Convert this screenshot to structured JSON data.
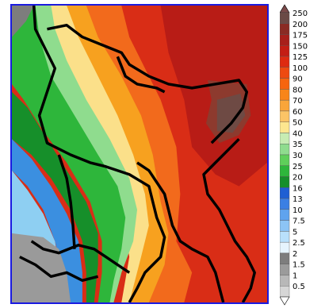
{
  "map": {
    "background_colors": [
      "#e23b1e",
      "#f26a1c",
      "#f7a11f",
      "#f9d97b",
      "#69d36a",
      "#2fae3c",
      "#8ecff2",
      "#3b8fe0",
      "#9a9a9a",
      "#6d2a2a",
      "#b01a1a"
    ],
    "boundary_color": "#000000",
    "frame_color": "#1a1ae0"
  },
  "legend": {
    "max_arrow_color": "#7a4a4a",
    "min_arrow_color": "#ffffff",
    "bins": [
      {
        "label": "250",
        "color": "#6b4a46"
      },
      {
        "label": "200",
        "color": "#8a2b24"
      },
      {
        "label": "175",
        "color": "#a8201b"
      },
      {
        "label": "150",
        "color": "#c41e14"
      },
      {
        "label": "125",
        "color": "#de2a10"
      },
      {
        "label": "100",
        "color": "#ee4a10"
      },
      {
        "label": "90",
        "color": "#f6650f"
      },
      {
        "label": "80",
        "color": "#f8851a"
      },
      {
        "label": "70",
        "color": "#f9a53a"
      },
      {
        "label": "60",
        "color": "#fbc466"
      },
      {
        "label": "50",
        "color": "#fde68f"
      },
      {
        "label": "40",
        "color": "#c7ecb3"
      },
      {
        "label": "35",
        "color": "#8fdc8e"
      },
      {
        "label": "30",
        "color": "#5fcf5a"
      },
      {
        "label": "25",
        "color": "#2eb63b"
      },
      {
        "label": "20",
        "color": "#168f2a"
      },
      {
        "label": "16",
        "color": "#1f5fd3"
      },
      {
        "label": "13",
        "color": "#3b7fe3"
      },
      {
        "label": "10",
        "color": "#5fa3ee"
      },
      {
        "label": "7.5",
        "color": "#8cc4f5"
      },
      {
        "label": "5",
        "color": "#b9e0fb"
      },
      {
        "label": "2.5",
        "color": "#e6f4fd"
      },
      {
        "label": "2",
        "color": "#7d7d7d"
      },
      {
        "label": "1.5",
        "color": "#9b9b9b"
      },
      {
        "label": "1",
        "color": "#b8b8b8"
      },
      {
        "label": "0.5",
        "color": "#d6d6d6"
      }
    ]
  }
}
